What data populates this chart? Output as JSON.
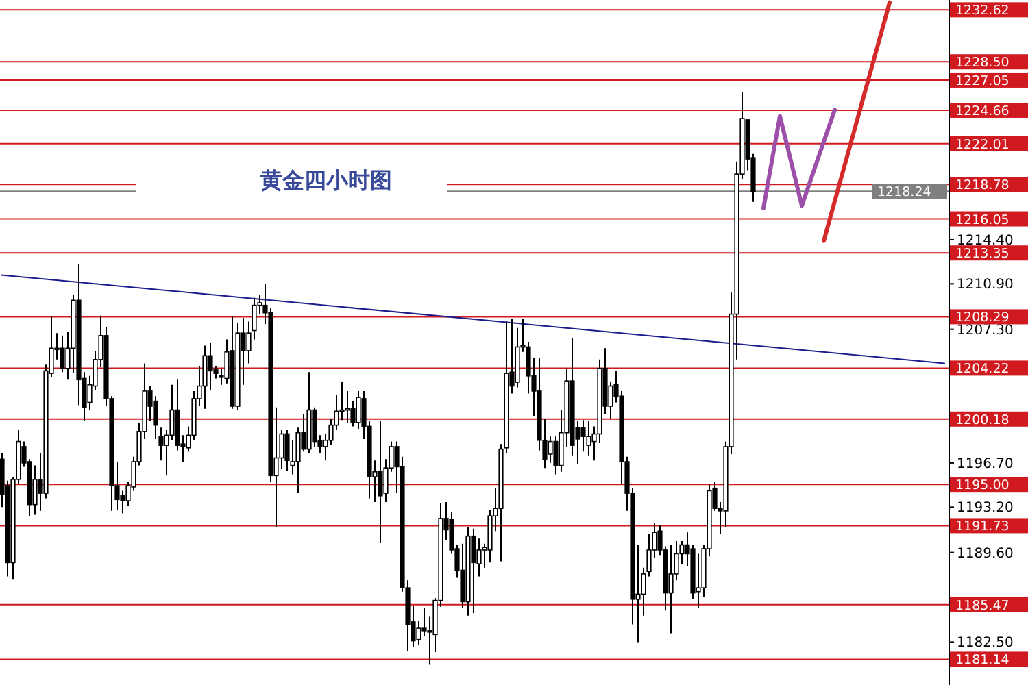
{
  "chart_data": {
    "type": "candlestick",
    "title": "黄金四小时图",
    "categories": [
      null,
      null,
      null,
      null,
      null,
      null,
      null,
      null,
      null,
      null,
      null,
      null,
      null,
      null,
      null,
      null,
      null,
      null,
      null,
      null,
      null,
      null,
      null,
      null,
      null,
      null,
      null,
      null,
      null,
      null,
      null,
      null,
      null,
      null,
      null,
      null,
      null,
      null,
      null,
      null,
      null,
      null,
      null,
      null,
      null,
      null,
      null,
      null,
      null,
      null,
      null,
      null,
      null,
      null,
      null,
      null,
      null,
      null,
      null,
      null,
      null,
      null,
      null,
      null,
      null,
      null,
      null,
      null,
      null,
      null,
      null,
      null,
      null,
      null,
      null,
      null,
      null,
      null,
      null,
      null,
      null,
      null,
      null,
      null,
      null,
      null,
      null,
      null,
      null,
      null,
      null,
      null,
      null,
      null,
      null,
      null,
      null,
      null,
      null,
      null,
      null,
      null,
      null,
      null,
      null,
      null,
      null,
      null,
      null,
      null,
      null,
      null,
      null,
      null,
      null,
      null,
      null,
      null,
      null,
      null,
      null,
      null,
      null,
      null,
      null,
      null,
      null,
      null,
      null,
      null,
      null,
      null,
      null,
      null,
      null,
      null,
      null,
      null,
      null,
      null,
      null,
      null,
      null,
      null,
      null,
      null,
      null,
      null,
      null,
      null,
      null,
      null,
      null,
      null,
      null,
      null,
      null,
      null,
      null,
      null,
      null,
      null,
      null,
      null,
      null,
      null,
      null,
      null,
      null,
      null,
      null,
      null,
      null
    ],
    "ohlc": [
      [
        1197.0,
        1197.5,
        1193.2,
        1194.2
      ],
      [
        1194.9,
        1195.3,
        1187.7,
        1188.8
      ],
      [
        1188.8,
        1195.6,
        1187.5,
        1195.4
      ],
      [
        1195.4,
        1199.3,
        1195.0,
        1198.4
      ],
      [
        1198.0,
        1198.4,
        1196.4,
        1196.7
      ],
      [
        1196.8,
        1197.0,
        1192.5,
        1193.4
      ],
      [
        1193.4,
        1196.5,
        1192.6,
        1195.4
      ],
      [
        1195.4,
        1197.5,
        1192.9,
        1194.3
      ],
      [
        1194.3,
        1204.5,
        1193.9,
        1204.0
      ],
      [
        1203.8,
        1208.3,
        1203.5,
        1205.8
      ],
      [
        1205.8,
        1207.0,
        1204.9,
        1205.7
      ],
      [
        1205.8,
        1206.8,
        1203.9,
        1204.2
      ],
      [
        1204.2,
        1207.1,
        1203.3,
        1205.8
      ],
      [
        1205.8,
        1210.0,
        1203.8,
        1209.6
      ],
      [
        1209.6,
        1212.5,
        1201.3,
        1203.3
      ],
      [
        1203.4,
        1203.9,
        1200.0,
        1201.1
      ],
      [
        1201.5,
        1203.6,
        1200.9,
        1202.9
      ],
      [
        1202.8,
        1205.6,
        1202.5,
        1204.9
      ],
      [
        1204.9,
        1208.4,
        1204.3,
        1206.8
      ],
      [
        1206.8,
        1207.5,
        1201.2,
        1201.8
      ],
      [
        1201.8,
        1202.0,
        1192.9,
        1194.9
      ],
      [
        1194.9,
        1196.8,
        1193.0,
        1193.8
      ],
      [
        1194.1,
        1194.5,
        1192.7,
        1193.7
      ],
      [
        1193.7,
        1195.2,
        1193.3,
        1194.9
      ],
      [
        1194.8,
        1197.2,
        1194.5,
        1196.8
      ],
      [
        1196.8,
        1199.9,
        1196.5,
        1199.2
      ],
      [
        1199.2,
        1204.6,
        1198.6,
        1202.4
      ],
      [
        1202.4,
        1202.8,
        1200.0,
        1201.2
      ],
      [
        1201.6,
        1202.0,
        1198.6,
        1199.7
      ],
      [
        1198.8,
        1199.5,
        1196.9,
        1198.1
      ],
      [
        1198.1,
        1199.3,
        1195.7,
        1198.9
      ],
      [
        1198.9,
        1202.9,
        1198.5,
        1200.9
      ],
      [
        1200.9,
        1203.3,
        1197.7,
        1198.1
      ],
      [
        1198.2,
        1198.9,
        1196.8,
        1198.0
      ],
      [
        1197.9,
        1199.6,
        1197.6,
        1198.9
      ],
      [
        1198.9,
        1202.4,
        1198.5,
        1201.8
      ],
      [
        1201.8,
        1204.4,
        1201.2,
        1202.8
      ],
      [
        1202.8,
        1206.0,
        1201.0,
        1205.2
      ],
      [
        1205.2,
        1206.2,
        1202.5,
        1204.0
      ],
      [
        1204.1,
        1204.4,
        1203.4,
        1203.8
      ],
      [
        1203.6,
        1204.2,
        1202.9,
        1203.5
      ],
      [
        1203.4,
        1206.5,
        1203.0,
        1205.5
      ],
      [
        1205.6,
        1208.3,
        1201.0,
        1201.2
      ],
      [
        1201.2,
        1207.8,
        1200.9,
        1207.0
      ],
      [
        1207.0,
        1208.2,
        1202.9,
        1205.6
      ],
      [
        1205.6,
        1207.9,
        1204.6,
        1207.0
      ],
      [
        1207.2,
        1209.8,
        1206.5,
        1209.2
      ],
      [
        1209.2,
        1210.0,
        1208.5,
        1209.4
      ],
      [
        1209.2,
        1210.9,
        1207.7,
        1208.6
      ],
      [
        1208.6,
        1209.0,
        1195.2,
        1195.7
      ],
      [
        1195.7,
        1201.1,
        1191.6,
        1197.1
      ],
      [
        1197.1,
        1199.3,
        1196.2,
        1199.0
      ],
      [
        1199.0,
        1199.3,
        1196.1,
        1196.9
      ],
      [
        1196.5,
        1198.5,
        1195.8,
        1196.8
      ],
      [
        1196.8,
        1199.5,
        1194.3,
        1199.1
      ],
      [
        1199.1,
        1200.6,
        1197.6,
        1197.8
      ],
      [
        1197.8,
        1203.9,
        1197.5,
        1200.9
      ],
      [
        1200.9,
        1201.1,
        1198.0,
        1198.4
      ],
      [
        1198.5,
        1198.9,
        1197.5,
        1198.0
      ],
      [
        1198.0,
        1199.0,
        1196.9,
        1198.5
      ],
      [
        1198.5,
        1200.2,
        1198.1,
        1199.7
      ],
      [
        1199.7,
        1202.1,
        1199.3,
        1200.8
      ],
      [
        1200.8,
        1203.1,
        1200.1,
        1200.9
      ],
      [
        1200.9,
        1202.4,
        1199.9,
        1201.0
      ],
      [
        1201.0,
        1201.6,
        1199.6,
        1199.9
      ],
      [
        1199.9,
        1202.4,
        1199.4,
        1201.9
      ],
      [
        1201.8,
        1202.4,
        1198.6,
        1199.6
      ],
      [
        1199.6,
        1200.0,
        1193.9,
        1195.6
      ],
      [
        1195.6,
        1196.9,
        1193.6,
        1196.0
      ],
      [
        1196.0,
        1200.0,
        1190.4,
        1194.1
      ],
      [
        1194.3,
        1197.0,
        1193.6,
        1196.3
      ],
      [
        1196.3,
        1198.4,
        1196.0,
        1198.0
      ],
      [
        1198.0,
        1198.4,
        1194.3,
        1196.4
      ],
      [
        1196.4,
        1197.2,
        1186.5,
        1186.8
      ],
      [
        1186.8,
        1187.4,
        1181.8,
        1183.9
      ],
      [
        1184.1,
        1185.4,
        1182.1,
        1182.6
      ],
      [
        1182.7,
        1184.2,
        1182.3,
        1183.6
      ],
      [
        1183.6,
        1185.2,
        1183.0,
        1183.4
      ],
      [
        1183.4,
        1184.5,
        1180.7,
        1183.3
      ],
      [
        1183.1,
        1186.0,
        1181.7,
        1185.8
      ],
      [
        1185.8,
        1193.5,
        1185.3,
        1192.3
      ],
      [
        1192.3,
        1193.6,
        1190.6,
        1191.4
      ],
      [
        1192.2,
        1192.8,
        1189.5,
        1189.8
      ],
      [
        1189.9,
        1190.2,
        1187.6,
        1188.2
      ],
      [
        1188.2,
        1190.3,
        1185.2,
        1185.7
      ],
      [
        1185.7,
        1191.6,
        1184.6,
        1190.9
      ],
      [
        1190.9,
        1191.5,
        1184.8,
        1188.8
      ],
      [
        1188.7,
        1190.7,
        1187.7,
        1189.8
      ],
      [
        1189.8,
        1190.3,
        1188.4,
        1190.0
      ],
      [
        1189.8,
        1193.0,
        1188.8,
        1192.5
      ],
      [
        1192.5,
        1194.7,
        1191.3,
        1193.1
      ],
      [
        1193.1,
        1198.2,
        1188.9,
        1197.8
      ],
      [
        1197.9,
        1207.9,
        1197.5,
        1203.8
      ],
      [
        1203.9,
        1208.1,
        1202.2,
        1202.8
      ],
      [
        1203.1,
        1207.4,
        1202.7,
        1205.9
      ],
      [
        1205.9,
        1208.1,
        1205.5,
        1206.0
      ],
      [
        1205.9,
        1206.3,
        1202.2,
        1203.6
      ],
      [
        1203.6,
        1205.0,
        1200.4,
        1202.4
      ],
      [
        1202.4,
        1205.0,
        1197.7,
        1198.5
      ],
      [
        1198.5,
        1200.2,
        1196.3,
        1197.0
      ],
      [
        1197.4,
        1198.8,
        1196.7,
        1198.4
      ],
      [
        1198.4,
        1198.8,
        1195.8,
        1196.5
      ],
      [
        1196.5,
        1200.9,
        1196.0,
        1199.1
      ],
      [
        1199.1,
        1204.2,
        1198.0,
        1203.2
      ],
      [
        1203.2,
        1206.6,
        1197.3,
        1198.1
      ],
      [
        1199.5,
        1200.0,
        1196.6,
        1198.6
      ],
      [
        1199.5,
        1200.1,
        1197.6,
        1198.8
      ],
      [
        1198.1,
        1200.0,
        1197.3,
        1198.8
      ],
      [
        1198.4,
        1199.6,
        1196.9,
        1199.0
      ],
      [
        1199.0,
        1204.9,
        1198.3,
        1204.2
      ],
      [
        1204.2,
        1205.8,
        1200.6,
        1201.2
      ],
      [
        1201.2,
        1203.1,
        1200.2,
        1202.8
      ],
      [
        1202.9,
        1204.0,
        1201.5,
        1202.0
      ],
      [
        1202.0,
        1202.4,
        1195.0,
        1196.8
      ],
      [
        1196.8,
        1197.2,
        1192.9,
        1194.3
      ],
      [
        1194.3,
        1194.7,
        1183.9,
        1185.9
      ],
      [
        1185.9,
        1190.2,
        1182.5,
        1186.3
      ],
      [
        1186.3,
        1188.4,
        1184.6,
        1187.9
      ],
      [
        1188.1,
        1191.1,
        1187.7,
        1189.8
      ],
      [
        1189.8,
        1191.9,
        1189.2,
        1191.2
      ],
      [
        1191.3,
        1191.8,
        1189.4,
        1189.8
      ],
      [
        1189.8,
        1190.1,
        1185.0,
        1186.4
      ],
      [
        1186.4,
        1190.2,
        1183.2,
        1187.9
      ],
      [
        1187.9,
        1190.5,
        1187.4,
        1189.5
      ],
      [
        1189.5,
        1190.5,
        1188.7,
        1190.2
      ],
      [
        1190.2,
        1191.2,
        1188.5,
        1189.5
      ],
      [
        1189.9,
        1190.2,
        1185.9,
        1186.4
      ],
      [
        1186.5,
        1189.5,
        1185.2,
        1186.8
      ],
      [
        1186.8,
        1190.2,
        1186.1,
        1189.9
      ],
      [
        1189.9,
        1195.0,
        1189.3,
        1194.5
      ],
      [
        1194.7,
        1195.2,
        1192.9,
        1193.1
      ],
      [
        1193.1,
        1193.6,
        1191.1,
        1192.9
      ],
      [
        1192.9,
        1198.4,
        1191.6,
        1198.0
      ],
      [
        1198.0,
        1210.2,
        1197.4,
        1208.5
      ],
      [
        1208.5,
        1220.6,
        1204.9,
        1219.6
      ],
      [
        1219.6,
        1226.1,
        1219.2,
        1224.0
      ],
      [
        1223.9,
        1224.0,
        1219.9,
        1220.8
      ],
      [
        1220.9,
        1221.2,
        1217.4,
        1218.2
      ],
      null,
      null,
      null,
      null,
      null,
      null,
      null,
      null,
      null,
      null,
      null,
      null,
      null,
      null,
      null,
      null,
      null,
      null,
      null,
      null,
      null,
      null,
      null,
      null,
      null,
      null,
      null,
      null,
      null,
      null,
      null,
      null,
      null,
      null,
      null
    ],
    "series": [
      {
        "type": "line",
        "color": "#1c1c8c",
        "values": [
          1211.6,
          null,
          null,
          null,
          null,
          null,
          null,
          null,
          null,
          null,
          null,
          null,
          null,
          null,
          null,
          null,
          null,
          null,
          null,
          null,
          null,
          null,
          null,
          null,
          null,
          null,
          null,
          null,
          null,
          null,
          null,
          null,
          null,
          null,
          null,
          null,
          null,
          null,
          null,
          null,
          null,
          null,
          null,
          null,
          null,
          null,
          null,
          null,
          null,
          null,
          null,
          null,
          null,
          null,
          null,
          null,
          null,
          null,
          null,
          null,
          null,
          null,
          null,
          null,
          null,
          null,
          null,
          null,
          null,
          null,
          null,
          null,
          null,
          null,
          null,
          null,
          null,
          null,
          null,
          null,
          null,
          null,
          null,
          null,
          null,
          null,
          null,
          null,
          null,
          null,
          null,
          null,
          null,
          null,
          null,
          null,
          null,
          null,
          null,
          null,
          null,
          null,
          null,
          null,
          null,
          null,
          null,
          null,
          null,
          null,
          null,
          null,
          null,
          null,
          null,
          null,
          null,
          null,
          null,
          null,
          null,
          null,
          null,
          null,
          null,
          null,
          null,
          null,
          null,
          null,
          null,
          null,
          null,
          null,
          null,
          null,
          null,
          null,
          null,
          null,
          null,
          null,
          null,
          null,
          null,
          null,
          null,
          null,
          null,
          null,
          null,
          null,
          null,
          null,
          null,
          null,
          null,
          null,
          null,
          null,
          null,
          null,
          null,
          null,
          null,
          null,
          null,
          null,
          null,
          null,
          null,
          null,
          1204.6
        ]
      },
      {
        "type": "line",
        "color": "#9b4fa8",
        "values": [
          null,
          null,
          null,
          null,
          null,
          null,
          null,
          null,
          null,
          null,
          null,
          null,
          null,
          null,
          null,
          null,
          null,
          null,
          null,
          null,
          null,
          null,
          null,
          null,
          null,
          null,
          null,
          null,
          null,
          null,
          null,
          null,
          null,
          null,
          null,
          null,
          null,
          null,
          null,
          null,
          null,
          null,
          null,
          null,
          null,
          null,
          null,
          null,
          null,
          null,
          null,
          null,
          null,
          null,
          null,
          null,
          null,
          null,
          null,
          null,
          null,
          null,
          null,
          null,
          null,
          null,
          null,
          null,
          null,
          null,
          null,
          null,
          null,
          null,
          null,
          null,
          null,
          null,
          null,
          null,
          null,
          null,
          null,
          null,
          null,
          null,
          null,
          null,
          null,
          null,
          null,
          null,
          null,
          null,
          null,
          null,
          null,
          null,
          null,
          null,
          null,
          null,
          null,
          null,
          null,
          null,
          null,
          null,
          null,
          null,
          null,
          null,
          null,
          null,
          null,
          null,
          null,
          null,
          null,
          null,
          null,
          null,
          null,
          null,
          null,
          null,
          null,
          null,
          null,
          null,
          null,
          null,
          null,
          null,
          null,
          null,
          null,
          null,
          null,
          1216.9,
          null,
          null,
          1224.2,
          null,
          null,
          null,
          1217.1,
          null,
          null,
          null,
          null,
          null,
          1224.7,
          null,
          null,
          null,
          null,
          null,
          null,
          null,
          null,
          null,
          null,
          null,
          null,
          null,
          null,
          null,
          null,
          null,
          null,
          null,
          null
        ]
      },
      {
        "type": "line",
        "color": "#d42a2a",
        "values": [
          null,
          null,
          null,
          null,
          null,
          null,
          null,
          null,
          null,
          null,
          null,
          null,
          null,
          null,
          null,
          null,
          null,
          null,
          null,
          null,
          null,
          null,
          null,
          null,
          null,
          null,
          null,
          null,
          null,
          null,
          null,
          null,
          null,
          null,
          null,
          null,
          null,
          null,
          null,
          null,
          null,
          null,
          null,
          null,
          null,
          null,
          null,
          null,
          null,
          null,
          null,
          null,
          null,
          null,
          null,
          null,
          null,
          null,
          null,
          null,
          null,
          null,
          null,
          null,
          null,
          null,
          null,
          null,
          null,
          null,
          null,
          null,
          null,
          null,
          null,
          null,
          null,
          null,
          null,
          null,
          null,
          null,
          null,
          null,
          null,
          null,
          null,
          null,
          null,
          null,
          null,
          null,
          null,
          null,
          null,
          null,
          null,
          null,
          null,
          null,
          null,
          null,
          null,
          null,
          null,
          null,
          null,
          null,
          null,
          null,
          null,
          null,
          null,
          null,
          null,
          null,
          null,
          null,
          null,
          null,
          null,
          null,
          null,
          null,
          null,
          null,
          null,
          null,
          null,
          null,
          null,
          null,
          null,
          null,
          null,
          null,
          null,
          null,
          null,
          null,
          null,
          null,
          null,
          null,
          null,
          null,
          null,
          null,
          null,
          null,
          1214.3,
          null,
          null,
          null,
          null,
          null,
          null,
          null,
          null,
          null,
          null,
          null,
          1233.2,
          null,
          null,
          null,
          null,
          null,
          null,
          null,
          null,
          null,
          null
        ]
      }
    ],
    "ylim": [
      1179.1,
      1233.4
    ],
    "yticks": [
      {
        "value": 1214.4,
        "label": "1214.40"
      },
      {
        "value": 1210.9,
        "label": "1210.90"
      },
      {
        "value": 1207.3,
        "label": "1207.30"
      },
      {
        "value": 1196.7,
        "label": "1196.70"
      },
      {
        "value": 1193.2,
        "label": "1193.20"
      },
      {
        "value": 1189.6,
        "label": "1189.60"
      },
      {
        "value": 1182.5,
        "label": "1182.50"
      }
    ],
    "ref_lines": [
      {
        "axis": "y",
        "value": 1232.62,
        "label": "1232.62",
        "color": "#d11a1f"
      },
      {
        "axis": "y",
        "value": 1228.5,
        "label": "1228.50",
        "color": "#d11a1f"
      },
      {
        "axis": "y",
        "value": 1227.05,
        "label": "1227.05",
        "color": "#d11a1f"
      },
      {
        "axis": "y",
        "value": 1224.66,
        "label": "1224.66",
        "color": "#d11a1f"
      },
      {
        "axis": "y",
        "value": 1222.01,
        "label": "1222.01",
        "color": "#d11a1f"
      },
      {
        "axis": "y",
        "value": 1218.78,
        "label": "1218.78",
        "color": "#d11a1f"
      },
      {
        "axis": "y",
        "value": 1218.24,
        "label": "1218.24",
        "color": "#808080"
      },
      {
        "axis": "y",
        "value": 1216.05,
        "label": "1216.05",
        "color": "#d11a1f"
      },
      {
        "axis": "y",
        "value": 1213.35,
        "label": "1213.35",
        "color": "#d11a1f"
      },
      {
        "axis": "y",
        "value": 1208.29,
        "label": "1208.29",
        "color": "#d11a1f"
      },
      {
        "axis": "y",
        "value": 1204.22,
        "label": "1204.22",
        "color": "#d11a1f"
      },
      {
        "axis": "y",
        "value": 1200.18,
        "label": "1200.18",
        "color": "#d11a1f"
      },
      {
        "axis": "y",
        "value": 1195.0,
        "label": "1195.00",
        "color": "#d11a1f"
      },
      {
        "axis": "y",
        "value": 1191.73,
        "label": "1191.73",
        "color": "#d11a1f"
      },
      {
        "axis": "y",
        "value": 1185.47,
        "label": "1185.47",
        "color": "#d11a1f"
      },
      {
        "axis": "y",
        "value": 1181.14,
        "label": "1181.14",
        "color": "#d11a1f"
      }
    ],
    "tick_labels": "y"
  }
}
